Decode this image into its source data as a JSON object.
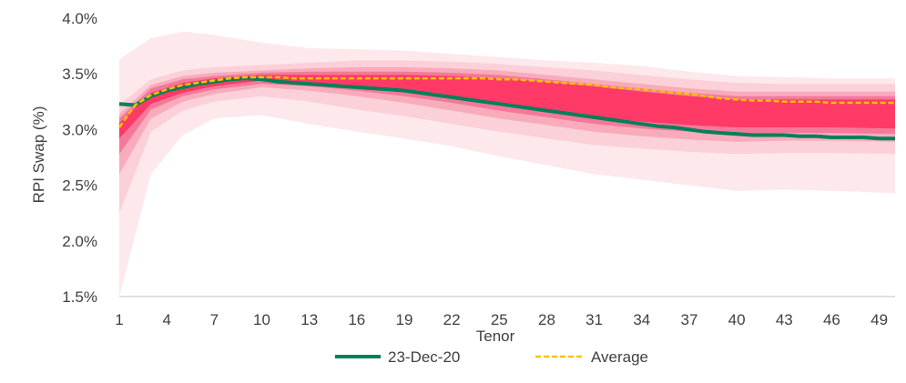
{
  "chart_data": {
    "type": "area",
    "title": "",
    "xlabel": "Tenor",
    "ylabel": "RPI Swap (%)",
    "ylim": [
      1.5,
      4.0
    ],
    "xlim": [
      1,
      50
    ],
    "yticks": [
      1.5,
      2.0,
      2.5,
      3.0,
      3.5,
      4.0
    ],
    "ytick_labels": [
      "1.5%",
      "2.0%",
      "2.5%",
      "3.0%",
      "3.5%",
      "4.0%"
    ],
    "xticks": [
      1,
      4,
      7,
      10,
      13,
      16,
      19,
      22,
      25,
      28,
      31,
      34,
      37,
      40,
      43,
      46,
      49
    ],
    "xtick_labels": [
      "1",
      "4",
      "7",
      "10",
      "13",
      "16",
      "19",
      "22",
      "25",
      "28",
      "31",
      "34",
      "37",
      "40",
      "43",
      "46",
      "49"
    ],
    "grid": false,
    "legend_position": "bottom",
    "colors": {
      "band_outer": "#fde8ec",
      "band_2": "#fbd0d9",
      "band_3": "#f8abbb",
      "band_4": "#f3799a",
      "band_inner": "#ff3a66",
      "current": "#00805a",
      "average": "#ffc000",
      "axis": "#bfbfbf"
    },
    "bands": {
      "x": [
        1,
        3,
        5,
        7,
        10,
        13,
        16,
        19,
        22,
        25,
        28,
        31,
        34,
        37,
        40,
        43,
        46,
        50
      ],
      "outer_low": [
        1.5,
        2.6,
        2.95,
        3.1,
        3.13,
        3.05,
        2.98,
        2.92,
        2.85,
        2.76,
        2.68,
        2.6,
        2.55,
        2.5,
        2.45,
        2.46,
        2.45,
        2.43
      ],
      "outer_high": [
        3.63,
        3.82,
        3.88,
        3.85,
        3.78,
        3.73,
        3.72,
        3.71,
        3.68,
        3.65,
        3.62,
        3.6,
        3.57,
        3.52,
        3.48,
        3.47,
        3.46,
        3.46
      ],
      "b2_low": [
        2.25,
        2.98,
        3.17,
        3.25,
        3.3,
        3.25,
        3.18,
        3.12,
        3.05,
        2.98,
        2.92,
        2.86,
        2.83,
        2.8,
        2.78,
        2.79,
        2.79,
        2.78
      ],
      "b2_high": [
        3.22,
        3.45,
        3.53,
        3.56,
        3.58,
        3.6,
        3.62,
        3.62,
        3.61,
        3.59,
        3.56,
        3.53,
        3.49,
        3.45,
        3.42,
        3.41,
        3.41,
        3.41
      ],
      "b3_low": [
        2.6,
        3.1,
        3.25,
        3.32,
        3.38,
        3.35,
        3.3,
        3.24,
        3.17,
        3.1,
        3.04,
        2.98,
        2.94,
        2.91,
        2.89,
        2.9,
        2.9,
        2.89
      ],
      "b3_high": [
        3.14,
        3.4,
        3.48,
        3.51,
        3.53,
        3.55,
        3.56,
        3.56,
        3.55,
        3.53,
        3.49,
        3.45,
        3.41,
        3.37,
        3.34,
        3.34,
        3.34,
        3.34
      ],
      "b4_low": [
        2.78,
        3.18,
        3.3,
        3.36,
        3.41,
        3.39,
        3.35,
        3.3,
        3.24,
        3.17,
        3.11,
        3.05,
        3.01,
        2.98,
        2.96,
        2.97,
        2.97,
        2.96
      ],
      "b4_high": [
        3.1,
        3.37,
        3.45,
        3.48,
        3.51,
        3.52,
        3.52,
        3.52,
        3.51,
        3.49,
        3.45,
        3.41,
        3.37,
        3.33,
        3.3,
        3.3,
        3.3,
        3.3
      ],
      "inner_low": [
        2.92,
        3.23,
        3.33,
        3.39,
        3.44,
        3.42,
        3.39,
        3.35,
        3.3,
        3.23,
        3.17,
        3.11,
        3.07,
        3.04,
        3.02,
        3.02,
        3.02,
        3.01
      ],
      "inner_high": [
        3.06,
        3.33,
        3.42,
        3.46,
        3.49,
        3.49,
        3.49,
        3.49,
        3.48,
        3.46,
        3.43,
        3.39,
        3.34,
        3.3,
        3.27,
        3.27,
        3.27,
        3.27
      ]
    },
    "series": [
      {
        "name": "23-Dec-20",
        "style": "solid",
        "x": [
          1,
          2,
          3,
          4,
          5,
          6,
          7,
          8,
          9,
          10,
          11,
          12,
          13,
          14,
          15,
          16,
          17,
          18,
          19,
          20,
          21,
          22,
          23,
          24,
          25,
          26,
          27,
          28,
          29,
          30,
          31,
          32,
          33,
          34,
          35,
          36,
          37,
          38,
          39,
          40,
          41,
          42,
          43,
          44,
          45,
          46,
          47,
          48,
          49,
          50
        ],
        "values": [
          3.23,
          3.22,
          3.3,
          3.35,
          3.38,
          3.41,
          3.43,
          3.45,
          3.46,
          3.45,
          3.43,
          3.42,
          3.41,
          3.4,
          3.39,
          3.38,
          3.37,
          3.36,
          3.35,
          3.33,
          3.31,
          3.29,
          3.27,
          3.25,
          3.23,
          3.21,
          3.19,
          3.17,
          3.15,
          3.13,
          3.11,
          3.09,
          3.07,
          3.05,
          3.03,
          3.02,
          3.0,
          2.98,
          2.97,
          2.96,
          2.95,
          2.95,
          2.95,
          2.94,
          2.94,
          2.93,
          2.93,
          2.93,
          2.92,
          2.92
        ]
      },
      {
        "name": "Average",
        "style": "dashed",
        "x": [
          1,
          2,
          3,
          4,
          5,
          6,
          7,
          8,
          9,
          10,
          11,
          12,
          13,
          14,
          15,
          16,
          17,
          18,
          19,
          20,
          21,
          22,
          23,
          24,
          25,
          26,
          27,
          28,
          29,
          30,
          31,
          32,
          33,
          34,
          35,
          36,
          37,
          38,
          39,
          40,
          41,
          42,
          43,
          44,
          45,
          46,
          47,
          48,
          49,
          50
        ],
        "values": [
          3.02,
          3.22,
          3.31,
          3.36,
          3.4,
          3.42,
          3.44,
          3.46,
          3.47,
          3.47,
          3.47,
          3.46,
          3.46,
          3.46,
          3.46,
          3.46,
          3.46,
          3.46,
          3.46,
          3.46,
          3.46,
          3.46,
          3.46,
          3.46,
          3.45,
          3.45,
          3.44,
          3.43,
          3.42,
          3.41,
          3.4,
          3.38,
          3.37,
          3.36,
          3.35,
          3.33,
          3.32,
          3.3,
          3.28,
          3.27,
          3.26,
          3.26,
          3.25,
          3.25,
          3.25,
          3.24,
          3.24,
          3.24,
          3.24,
          3.24
        ]
      }
    ]
  }
}
